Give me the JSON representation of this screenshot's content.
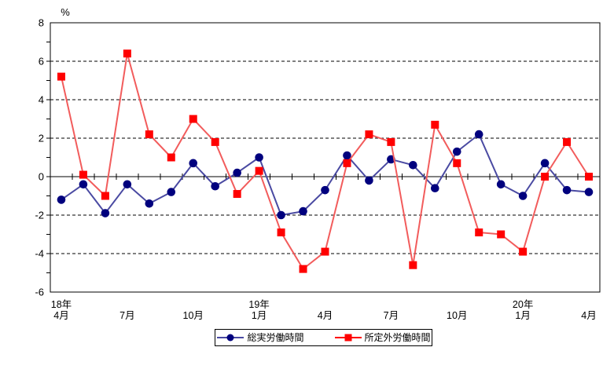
{
  "chart_data": {
    "type": "line",
    "title": "",
    "ylabel": "%",
    "xlabel": "",
    "ylim": [
      -6,
      8
    ],
    "yticks": [
      8,
      6,
      4,
      2,
      0,
      -2,
      -4,
      -6
    ],
    "grid": "dashed horizontal gridlines at even values, solid zero axis",
    "legend_position": "bottom",
    "categories": [
      "18年4月",
      "18年5月",
      "18年6月",
      "18年7月",
      "18年8月",
      "18年9月",
      "18年10月",
      "18年11月",
      "18年12月",
      "19年1月",
      "19年2月",
      "19年3月",
      "19年4月",
      "19年5月",
      "19年6月",
      "19年7月",
      "19年8月",
      "19年9月",
      "19年10月",
      "19年11月",
      "19年12月",
      "20年1月",
      "20年2月",
      "20年3月",
      "20年4月"
    ],
    "xtick_labels": [
      {
        "index": 0,
        "month": "4月",
        "year": "18年"
      },
      {
        "index": 3,
        "month": "7月"
      },
      {
        "index": 6,
        "month": "10月"
      },
      {
        "index": 9,
        "month": "1月",
        "year": "19年"
      },
      {
        "index": 12,
        "month": "4月"
      },
      {
        "index": 15,
        "month": "7月"
      },
      {
        "index": 18,
        "month": "10月"
      },
      {
        "index": 21,
        "month": "1月",
        "year": "20年"
      },
      {
        "index": 24,
        "month": "4月"
      }
    ],
    "series": [
      {
        "name": "総実労働時間",
        "key": "total-actual-working-hours",
        "marker": "circle",
        "marker_color": "#00007e",
        "line_color": "#4a4aa2",
        "values": [
          -1.2,
          -0.4,
          -1.9,
          -0.4,
          -1.4,
          -0.8,
          0.7,
          -0.5,
          0.2,
          1.0,
          -2.0,
          -1.8,
          -0.7,
          1.1,
          -0.2,
          0.9,
          0.6,
          -0.6,
          1.3,
          2.2,
          -0.4,
          -1.0,
          0.7,
          -0.7,
          -0.8
        ]
      },
      {
        "name": "所定外労働時間",
        "key": "overtime-working-hours",
        "marker": "square",
        "marker_color": "#ff0000",
        "line_color": "#f25c5c",
        "values": [
          5.2,
          0.1,
          -1.0,
          6.4,
          2.2,
          1.0,
          3.0,
          1.8,
          -0.9,
          0.3,
          -2.9,
          -4.8,
          -3.9,
          0.7,
          2.2,
          1.8,
          -4.6,
          2.7,
          0.7,
          -2.9,
          -3.0,
          -3.9,
          0.0,
          1.8,
          0.0
        ]
      }
    ]
  }
}
